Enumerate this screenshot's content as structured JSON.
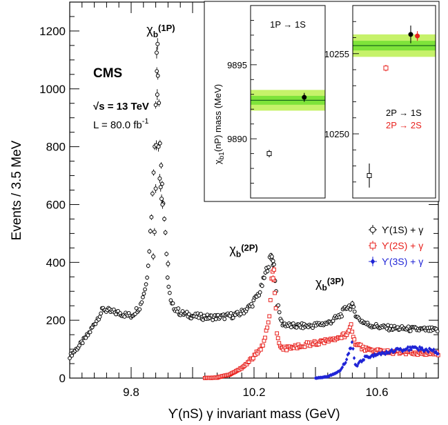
{
  "chart_data": {
    "type": "scatter",
    "xlabel": "ϒ(nS) γ  invariant mass (GeV)",
    "ylabel": "Events / 3.5 MeV",
    "xlim": [
      9.6,
      10.8
    ],
    "ylim": [
      0,
      1300
    ],
    "x_ticks": [
      "9.8",
      "10.2",
      "10.6"
    ],
    "x_tick_values": [
      9.8,
      10.2,
      10.6
    ],
    "y_ticks": [
      "0",
      "200",
      "400",
      "600",
      "800",
      "1000",
      "1200"
    ],
    "y_tick_values": [
      0,
      200,
      400,
      600,
      800,
      1000,
      1200
    ],
    "experiment": "CMS",
    "sqrt_s_label": "√s = 13 TeV",
    "lumi_label": "L = 80.0 fb",
    "lumi_exp": "-1",
    "peak_labels": [
      {
        "base": "χ",
        "sub": "b",
        "suffix": "(1P)",
        "x": 9.85,
        "y": 1190
      },
      {
        "base": "χ",
        "sub": "b",
        "suffix": "(2P)",
        "x": 10.12,
        "y": 430
      },
      {
        "base": "χ",
        "sub": "b",
        "suffix": "(3P)",
        "x": 10.4,
        "y": 315
      }
    ],
    "legend": {
      "placement": "right",
      "entries": [
        {
          "label": "ϒ(1S) + γ",
          "color": "#000000",
          "marker": "open-circle"
        },
        {
          "label": "ϒ(2S) + γ",
          "color": "#e8201c",
          "marker": "open-square"
        },
        {
          "label": "ϒ(3S) + γ",
          "color": "#1f24d6",
          "marker": "filled-diamond"
        }
      ]
    },
    "series": [
      {
        "color": "#000000",
        "marker": "open-circle",
        "anchors_x": [
          9.6,
          9.63,
          9.66,
          9.69,
          9.71,
          9.73,
          9.76,
          9.8,
          9.83,
          9.85,
          9.86,
          9.87,
          9.878,
          9.885,
          9.89,
          9.895,
          9.9,
          9.905,
          9.91,
          9.915,
          9.92,
          9.93,
          9.96,
          10.0,
          10.05,
          10.1,
          10.15,
          10.19,
          10.22,
          10.24,
          10.255,
          10.265,
          10.275,
          10.29,
          10.32,
          10.38,
          10.44,
          10.48,
          10.505,
          10.52,
          10.54,
          10.57,
          10.62,
          10.7,
          10.8
        ],
        "anchors_y": [
          75,
          110,
          150,
          205,
          240,
          230,
          225,
          215,
          250,
          330,
          460,
          640,
          860,
          1120,
          980,
          790,
          690,
          600,
          520,
          420,
          330,
          255,
          225,
          215,
          210,
          212,
          220,
          250,
          300,
          370,
          420,
          390,
          260,
          190,
          180,
          180,
          190,
          215,
          250,
          245,
          205,
          185,
          175,
          170,
          165
        ],
        "points": [
          {
            "x": 9.886,
            "y": 1155
          },
          {
            "x": 9.883,
            "y": 1125
          },
          {
            "x": 9.885,
            "y": 980
          },
          {
            "x": 9.882,
            "y": 805
          },
          {
            "x": 9.889,
            "y": 800
          },
          {
            "x": 9.893,
            "y": 690
          },
          {
            "x": 9.896,
            "y": 660
          },
          {
            "x": 9.88,
            "y": 655
          },
          {
            "x": 9.899,
            "y": 620
          },
          {
            "x": 9.902,
            "y": 600
          },
          {
            "x": 9.876,
            "y": 505
          },
          {
            "x": 9.872,
            "y": 420
          },
          {
            "x": 9.92,
            "y": 395
          },
          {
            "x": 10.258,
            "y": 420
          },
          {
            "x": 10.262,
            "y": 405
          },
          {
            "x": 10.52,
            "y": 258
          }
        ]
      },
      {
        "color": "#e8201c",
        "marker": "open-square",
        "anchors_x": [
          10.04,
          10.08,
          10.12,
          10.16,
          10.2,
          10.23,
          10.25,
          10.26,
          10.27,
          10.275,
          10.29,
          10.33,
          10.4,
          10.46,
          10.5,
          10.515,
          10.53,
          10.56,
          10.62,
          10.7,
          10.8
        ],
        "anchors_y": [
          0,
          2,
          12,
          35,
          75,
          115,
          220,
          385,
          260,
          150,
          100,
          108,
          122,
          130,
          150,
          185,
          120,
          100,
          90,
          88,
          85
        ],
        "points": [
          {
            "x": 10.265,
            "y": 375
          },
          {
            "x": 10.262,
            "y": 345
          }
        ]
      },
      {
        "color": "#1f24d6",
        "marker": "filled-diamond",
        "anchors_x": [
          10.4,
          10.44,
          10.48,
          10.5,
          10.51,
          10.52,
          10.53,
          10.56,
          10.6,
          10.66,
          10.72,
          10.8
        ],
        "anchors_y": [
          0,
          5,
          25,
          60,
          90,
          120,
          40,
          70,
          80,
          95,
          105,
          90
        ],
        "points": []
      }
    ],
    "inset": {
      "ylabel_prefix": "χ",
      "ylabel_sub": "b1",
      "ylabel_suffix": "(nP) mass  (MeV)",
      "panels": [
        {
          "title": "1P → 1S",
          "ylim": [
            9886,
            9899
          ],
          "y_ticks": [
            "9890",
            "9895"
          ],
          "y_tick_values": [
            9890,
            9895
          ],
          "band": {
            "center": 9892.6,
            "inner": 0.3,
            "outer": 0.7
          },
          "points": [
            {
              "x": 0.25,
              "y": 9889.0,
              "err": 0.25,
              "color": "#000000",
              "marker": "open-square"
            },
            {
              "x": 0.72,
              "y": 9892.8,
              "err": 0.3,
              "color": "#000000",
              "marker": "filled-circle"
            }
          ]
        },
        {
          "ylim": [
            10246,
            10258
          ],
          "y_ticks": [
            "10250",
            "10255"
          ],
          "y_tick_values": [
            10250,
            10255
          ],
          "band": {
            "center": 10255.5,
            "inner": 0.3,
            "outer": 0.7
          },
          "legend_lines": [
            {
              "label": "2P → 1S",
              "color": "#000000"
            },
            {
              "label": "2P → 2S",
              "color": "#e8201c"
            }
          ],
          "points": [
            {
              "x": 0.2,
              "y": 10247.4,
              "err": 0.75,
              "color": "#000000",
              "marker": "open-square"
            },
            {
              "x": 0.4,
              "y": 10254.1,
              "err": 0.2,
              "color": "#e8201c",
              "marker": "open-square"
            },
            {
              "x": 0.7,
              "y": 10256.2,
              "err": 0.55,
              "color": "#000000",
              "marker": "filled-circle"
            },
            {
              "x": 0.78,
              "y": 10256.1,
              "err": 0.3,
              "color": "#e8201c",
              "marker": "filled-circle"
            }
          ]
        }
      ]
    }
  }
}
